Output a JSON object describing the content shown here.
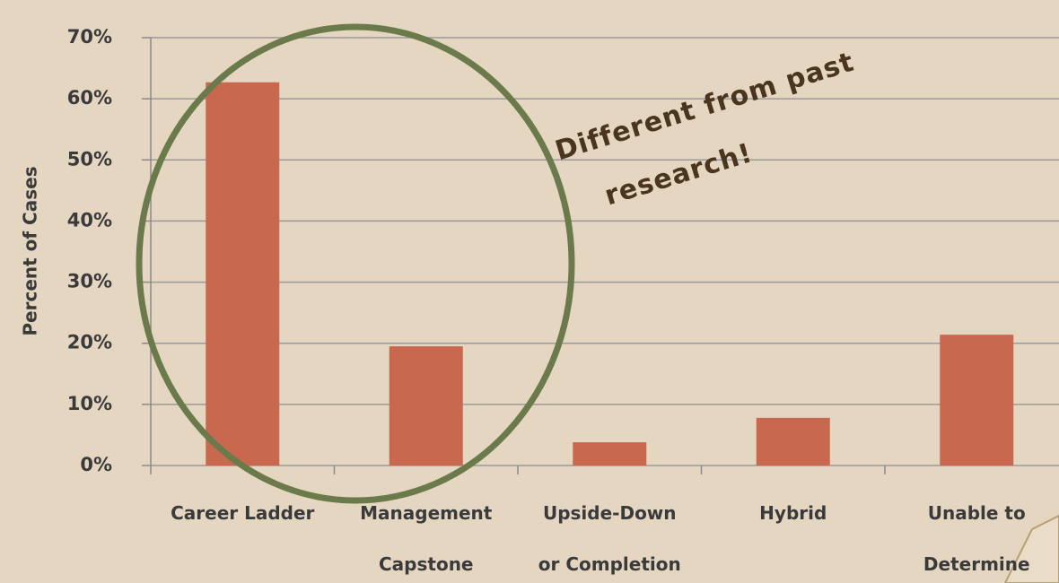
{
  "chart_data": {
    "type": "bar",
    "y_label": "Percent of Cases",
    "annotation": "Different from past\nresearch!",
    "categories": [
      "Career Ladder",
      "Management\nCapstone",
      "Upside-Down\nor Completion",
      "Hybrid",
      "Unable to\nDetermine"
    ],
    "values": [
      62.7,
      19.5,
      3.8,
      7.8,
      21.4
    ],
    "color": "#c8694f",
    "ylim": [
      0,
      70
    ],
    "yticks": [
      {
        "value": 0,
        "label": "0%"
      },
      {
        "value": 10,
        "label": "10%"
      },
      {
        "value": 20,
        "label": "20%"
      },
      {
        "value": 30,
        "label": "30%"
      },
      {
        "value": 40,
        "label": "40%"
      },
      {
        "value": 50,
        "label": "50%"
      },
      {
        "value": 60,
        "label": "60%"
      },
      {
        "value": 70,
        "label": "70%"
      }
    ],
    "grid": true
  }
}
